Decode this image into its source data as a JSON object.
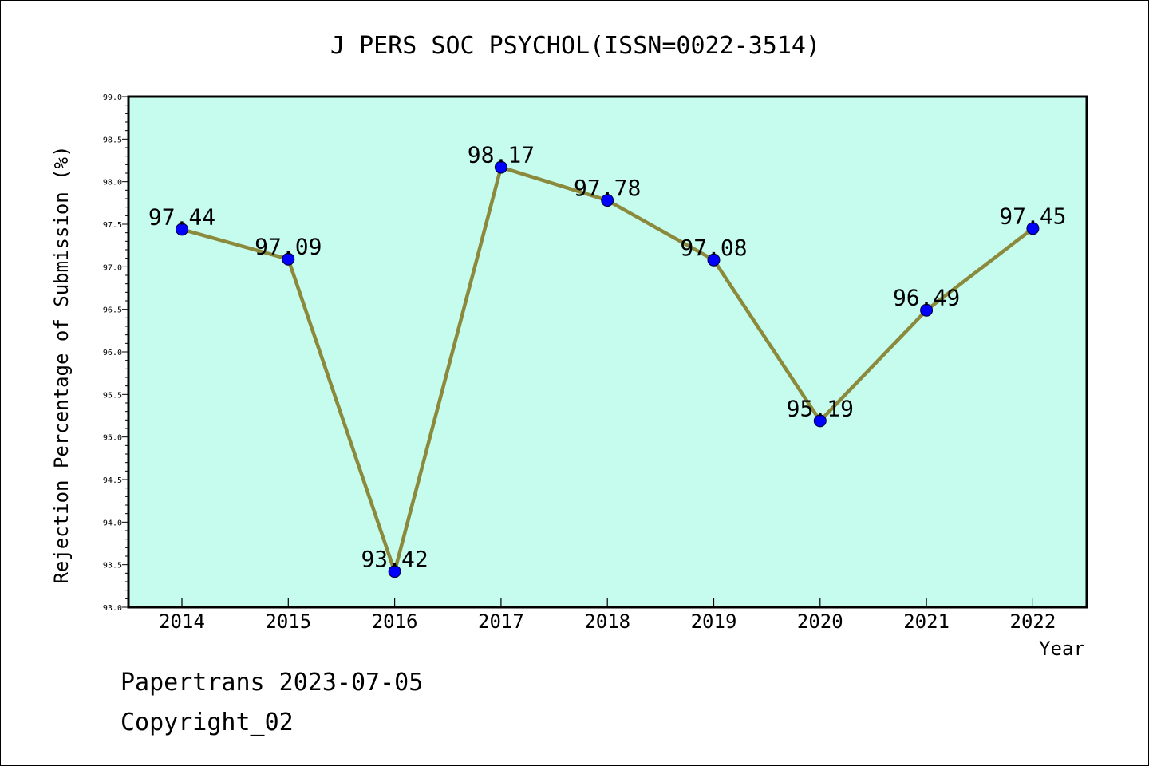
{
  "chart_data": {
    "type": "line",
    "title": "J PERS SOC PSYCHOL(ISSN=0022-3514)",
    "xlabel": "Year",
    "ylabel": "Rejection Percentage of Submission (%)",
    "categories": [
      "2014",
      "2015",
      "2016",
      "2017",
      "2018",
      "2019",
      "2020",
      "2021",
      "2022"
    ],
    "values": [
      97.44,
      97.09,
      93.42,
      98.17,
      97.78,
      97.08,
      95.19,
      96.49,
      97.45
    ],
    "data_labels": [
      "97.44",
      "97.09",
      "93.42",
      "98.17",
      "97.78",
      "97.08",
      "95.19",
      "96.49",
      "97.45"
    ],
    "ylim": [
      93.0,
      99.0
    ],
    "yticks": [
      "93.0",
      "93.5",
      "94.0",
      "94.5",
      "95.0",
      "95.5",
      "96.0",
      "96.5",
      "97.0",
      "97.5",
      "98.0",
      "98.5",
      "99.0"
    ],
    "grid": false,
    "colors": {
      "plot_background": "#c6fcee",
      "line": "#8b8a3c",
      "marker": "#0000ff"
    }
  },
  "footer": {
    "line1": "Papertrans 2023-07-05",
    "line2": "Copyright_02"
  }
}
